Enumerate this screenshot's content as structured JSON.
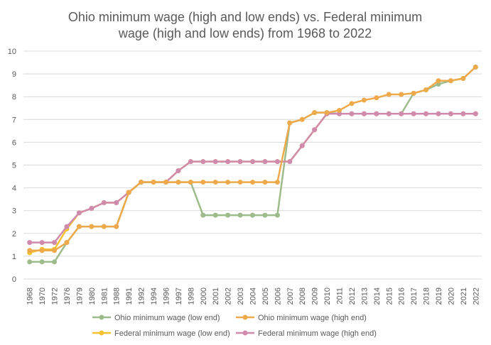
{
  "chart_data": {
    "type": "line",
    "title_lines": [
      "Ohio minimum wage (high and low ends) vs. Federal minimum",
      "wage (high and low ends) from 1968 to 2022"
    ],
    "xlabel": "",
    "ylabel": "",
    "ylim": [
      0,
      10
    ],
    "yticks": [
      0,
      1,
      2,
      3,
      4,
      5,
      6,
      7,
      8,
      9,
      10
    ],
    "grid": "horizontal",
    "legend_position": "bottom",
    "categories": [
      "1968",
      "1970",
      "1972",
      "1976",
      "1979",
      "1980",
      "1981",
      "1988",
      "1991",
      "1992",
      "1994",
      "1996",
      "1997",
      "1998",
      "2000",
      "2001",
      "2002",
      "2003",
      "2004",
      "2005",
      "2006",
      "2007",
      "2008",
      "2009",
      "2010",
      "2011",
      "2012",
      "2013",
      "2014",
      "2015",
      "2016",
      "2017",
      "2018",
      "2019",
      "2020",
      "2021",
      "2022"
    ],
    "series": [
      {
        "name": "Ohio minimum wage (low end)",
        "color": "#9dbb8b",
        "values": [
          0.75,
          0.75,
          0.75,
          1.6,
          2.3,
          2.3,
          2.3,
          2.3,
          3.8,
          4.25,
          4.25,
          4.25,
          4.25,
          4.25,
          2.8,
          2.8,
          2.8,
          2.8,
          2.8,
          2.8,
          2.8,
          6.85,
          7.0,
          7.3,
          7.3,
          7.25,
          7.25,
          7.25,
          7.25,
          7.25,
          7.25,
          8.15,
          8.3,
          8.55,
          8.7,
          8.8,
          9.3
        ]
      },
      {
        "name": "Federal minimum wage (low end)",
        "color": "#f2c230",
        "values": [
          1.15,
          1.3,
          1.3,
          2.2,
          2.9,
          3.1,
          3.35,
          3.35,
          3.8,
          4.25,
          4.25,
          4.25,
          4.75,
          5.15,
          5.15,
          5.15,
          5.15,
          5.15,
          5.15,
          5.15,
          5.15,
          5.15,
          5.85,
          6.55,
          7.25,
          7.25,
          7.25,
          7.25,
          7.25,
          7.25,
          7.25,
          7.25,
          7.25,
          7.25,
          7.25,
          7.25,
          7.25
        ]
      },
      {
        "name": "Federal minimum wage (high end)",
        "color": "#d08aab",
        "values": [
          1.6,
          1.6,
          1.6,
          2.3,
          2.9,
          3.1,
          3.35,
          3.35,
          3.8,
          4.25,
          4.25,
          4.25,
          4.75,
          5.15,
          5.15,
          5.15,
          5.15,
          5.15,
          5.15,
          5.15,
          5.15,
          5.15,
          5.85,
          6.55,
          7.25,
          7.25,
          7.25,
          7.25,
          7.25,
          7.25,
          7.25,
          7.25,
          7.25,
          7.25,
          7.25,
          7.25,
          7.25
        ]
      },
      {
        "name": "Ohio minimum wage (high end)",
        "color": "#eda94a",
        "values": [
          1.25,
          1.25,
          1.25,
          1.6,
          2.3,
          2.3,
          2.3,
          2.3,
          3.8,
          4.25,
          4.25,
          4.25,
          4.25,
          4.25,
          4.25,
          4.25,
          4.25,
          4.25,
          4.25,
          4.25,
          4.25,
          6.85,
          7.0,
          7.3,
          7.3,
          7.4,
          7.7,
          7.85,
          7.95,
          8.1,
          8.1,
          8.15,
          8.3,
          8.7,
          8.7,
          8.8,
          9.3
        ]
      }
    ],
    "legend": [
      {
        "label": "Ohio minimum wage (low end)",
        "color": "#9dbb8b"
      },
      {
        "label": "Ohio minimum wage (high end)",
        "color": "#eda94a"
      },
      {
        "label": "Federal minimum wage (low end)",
        "color": "#f2c230"
      },
      {
        "label": "Federal minimum wage (high end)",
        "color": "#d08aab"
      }
    ],
    "colors": {
      "grid": "#d9d9d9",
      "text": "#595959",
      "background": "#ffffff"
    }
  }
}
